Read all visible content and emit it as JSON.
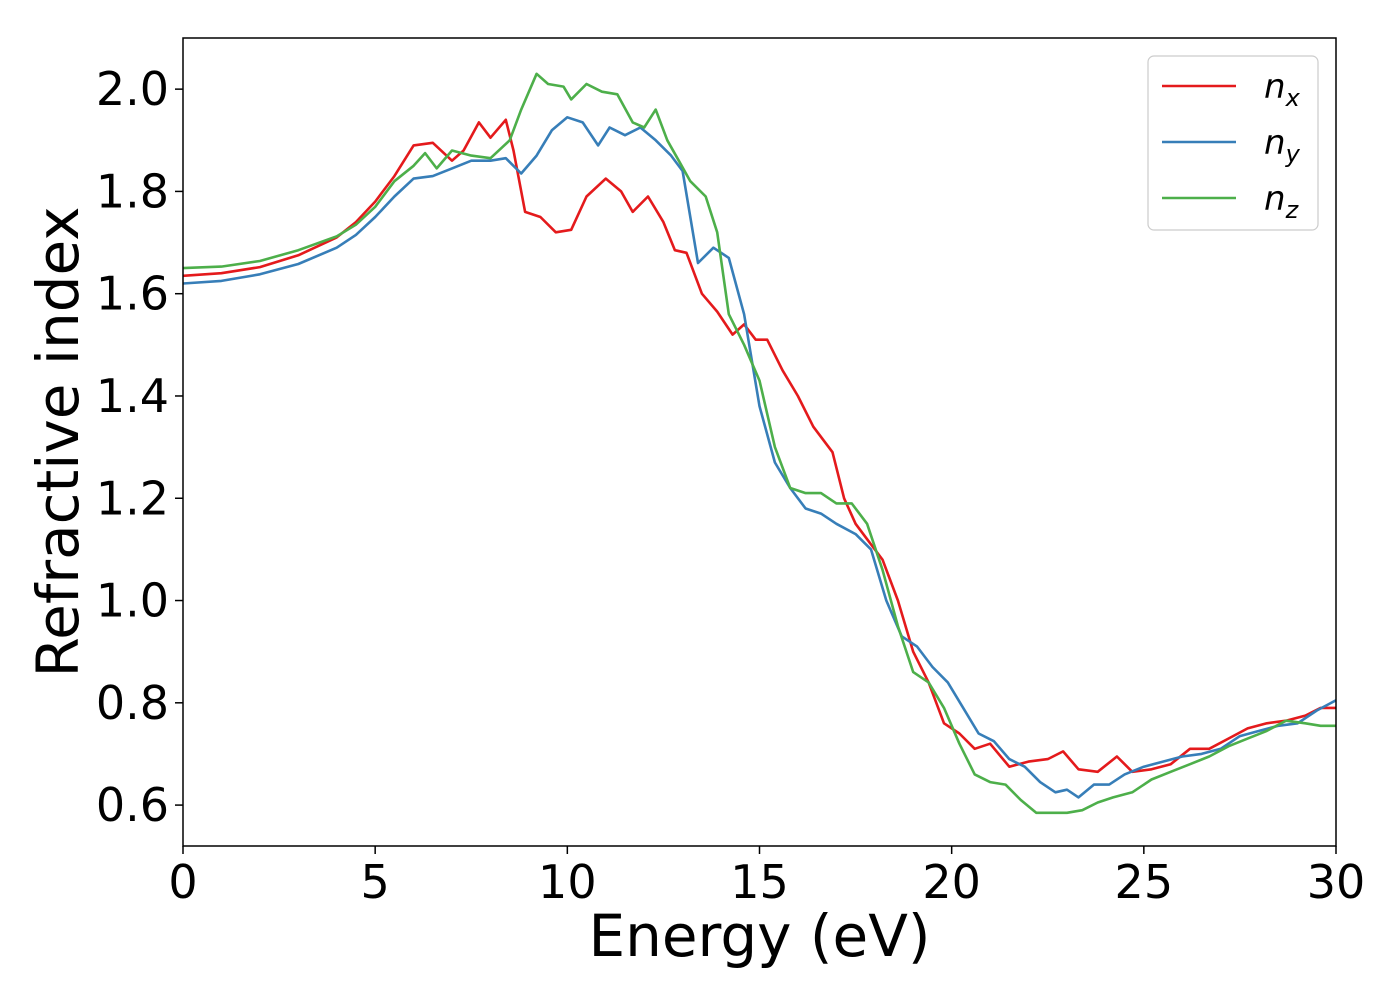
{
  "chart_data": {
    "type": "line",
    "title": "",
    "xlabel": "Energy (eV)",
    "ylabel": "Refractive index",
    "xlim": [
      0,
      30
    ],
    "ylim": [
      0.52,
      2.1
    ],
    "xticks": [
      0,
      5,
      10,
      15,
      20,
      25,
      30
    ],
    "xtick_labels": [
      "0",
      "5",
      "10",
      "15",
      "20",
      "25",
      "30"
    ],
    "yticks": [
      0.6,
      0.8,
      1.0,
      1.2,
      1.4,
      1.6,
      1.8,
      2.0
    ],
    "ytick_labels": [
      "0.6",
      "0.8",
      "1.0",
      "1.2",
      "1.4",
      "1.6",
      "1.8",
      "2.0"
    ],
    "grid": false,
    "legend_position": "top-right",
    "series": [
      {
        "name": "n_x",
        "label_base": "n",
        "label_sub": "x",
        "color": "#e41a1c",
        "points": [
          [
            0,
            1.635
          ],
          [
            1,
            1.64
          ],
          [
            2,
            1.652
          ],
          [
            3,
            1.675
          ],
          [
            4,
            1.71
          ],
          [
            4.5,
            1.74
          ],
          [
            5,
            1.78
          ],
          [
            5.5,
            1.83
          ],
          [
            6,
            1.89
          ],
          [
            6.5,
            1.895
          ],
          [
            7,
            1.86
          ],
          [
            7.3,
            1.88
          ],
          [
            7.7,
            1.935
          ],
          [
            8.0,
            1.905
          ],
          [
            8.4,
            1.94
          ],
          [
            8.6,
            1.88
          ],
          [
            8.9,
            1.76
          ],
          [
            9.3,
            1.75
          ],
          [
            9.7,
            1.72
          ],
          [
            10.1,
            1.725
          ],
          [
            10.5,
            1.79
          ],
          [
            11.0,
            1.825
          ],
          [
            11.4,
            1.8
          ],
          [
            11.7,
            1.76
          ],
          [
            12.1,
            1.79
          ],
          [
            12.5,
            1.74
          ],
          [
            12.8,
            1.685
          ],
          [
            13.1,
            1.68
          ],
          [
            13.5,
            1.6
          ],
          [
            13.9,
            1.565
          ],
          [
            14.3,
            1.52
          ],
          [
            14.6,
            1.54
          ],
          [
            14.9,
            1.51
          ],
          [
            15.2,
            1.51
          ],
          [
            15.6,
            1.45
          ],
          [
            16.0,
            1.4
          ],
          [
            16.4,
            1.34
          ],
          [
            16.9,
            1.29
          ],
          [
            17.2,
            1.2
          ],
          [
            17.5,
            1.15
          ],
          [
            17.8,
            1.12
          ],
          [
            18.2,
            1.08
          ],
          [
            18.6,
            1.0
          ],
          [
            19.0,
            0.9
          ],
          [
            19.4,
            0.84
          ],
          [
            19.8,
            0.76
          ],
          [
            20.2,
            0.74
          ],
          [
            20.6,
            0.71
          ],
          [
            21.0,
            0.72
          ],
          [
            21.5,
            0.675
          ],
          [
            22.0,
            0.685
          ],
          [
            22.5,
            0.69
          ],
          [
            22.9,
            0.705
          ],
          [
            23.3,
            0.67
          ],
          [
            23.8,
            0.665
          ],
          [
            24.3,
            0.695
          ],
          [
            24.7,
            0.665
          ],
          [
            25.2,
            0.67
          ],
          [
            25.7,
            0.68
          ],
          [
            26.2,
            0.71
          ],
          [
            26.7,
            0.71
          ],
          [
            27.2,
            0.73
          ],
          [
            27.7,
            0.75
          ],
          [
            28.2,
            0.76
          ],
          [
            28.7,
            0.765
          ],
          [
            29.2,
            0.775
          ],
          [
            29.6,
            0.79
          ],
          [
            30,
            0.79
          ]
        ]
      },
      {
        "name": "n_y",
        "label_base": "n",
        "label_sub": "y",
        "color": "#377eb8",
        "points": [
          [
            0,
            1.62
          ],
          [
            1,
            1.625
          ],
          [
            2,
            1.638
          ],
          [
            3,
            1.658
          ],
          [
            4,
            1.69
          ],
          [
            4.5,
            1.715
          ],
          [
            5,
            1.75
          ],
          [
            5.5,
            1.79
          ],
          [
            6,
            1.825
          ],
          [
            6.5,
            1.83
          ],
          [
            7,
            1.845
          ],
          [
            7.5,
            1.86
          ],
          [
            8,
            1.86
          ],
          [
            8.4,
            1.865
          ],
          [
            8.8,
            1.835
          ],
          [
            9.2,
            1.87
          ],
          [
            9.6,
            1.92
          ],
          [
            10.0,
            1.945
          ],
          [
            10.4,
            1.935
          ],
          [
            10.8,
            1.89
          ],
          [
            11.1,
            1.925
          ],
          [
            11.5,
            1.91
          ],
          [
            11.9,
            1.925
          ],
          [
            12.3,
            1.9
          ],
          [
            12.7,
            1.87
          ],
          [
            13.0,
            1.84
          ],
          [
            13.4,
            1.66
          ],
          [
            13.8,
            1.69
          ],
          [
            14.2,
            1.67
          ],
          [
            14.6,
            1.56
          ],
          [
            15.0,
            1.38
          ],
          [
            15.4,
            1.27
          ],
          [
            15.8,
            1.22
          ],
          [
            16.2,
            1.18
          ],
          [
            16.6,
            1.17
          ],
          [
            17.0,
            1.15
          ],
          [
            17.5,
            1.13
          ],
          [
            17.9,
            1.1
          ],
          [
            18.3,
            1.0
          ],
          [
            18.7,
            0.93
          ],
          [
            19.1,
            0.91
          ],
          [
            19.5,
            0.87
          ],
          [
            19.9,
            0.84
          ],
          [
            20.3,
            0.79
          ],
          [
            20.7,
            0.74
          ],
          [
            21.1,
            0.725
          ],
          [
            21.5,
            0.69
          ],
          [
            21.9,
            0.675
          ],
          [
            22.3,
            0.645
          ],
          [
            22.7,
            0.625
          ],
          [
            23.0,
            0.63
          ],
          [
            23.3,
            0.615
          ],
          [
            23.7,
            0.64
          ],
          [
            24.1,
            0.64
          ],
          [
            24.5,
            0.66
          ],
          [
            25.0,
            0.675
          ],
          [
            25.5,
            0.685
          ],
          [
            26.0,
            0.695
          ],
          [
            26.5,
            0.7
          ],
          [
            27.0,
            0.71
          ],
          [
            27.5,
            0.735
          ],
          [
            28.0,
            0.745
          ],
          [
            28.5,
            0.755
          ],
          [
            29.0,
            0.76
          ],
          [
            29.5,
            0.785
          ],
          [
            30,
            0.805
          ]
        ]
      },
      {
        "name": "n_z",
        "label_base": "n",
        "label_sub": "z",
        "color": "#4daf4a",
        "points": [
          [
            0,
            1.65
          ],
          [
            1,
            1.653
          ],
          [
            2,
            1.664
          ],
          [
            3,
            1.685
          ],
          [
            4,
            1.712
          ],
          [
            4.5,
            1.735
          ],
          [
            5,
            1.77
          ],
          [
            5.5,
            1.82
          ],
          [
            6,
            1.85
          ],
          [
            6.3,
            1.875
          ],
          [
            6.6,
            1.845
          ],
          [
            7,
            1.88
          ],
          [
            7.5,
            1.87
          ],
          [
            8.0,
            1.865
          ],
          [
            8.5,
            1.9
          ],
          [
            8.8,
            1.96
          ],
          [
            9.2,
            2.03
          ],
          [
            9.5,
            2.01
          ],
          [
            9.9,
            2.005
          ],
          [
            10.1,
            1.98
          ],
          [
            10.5,
            2.01
          ],
          [
            10.9,
            1.995
          ],
          [
            11.3,
            1.99
          ],
          [
            11.7,
            1.935
          ],
          [
            12.0,
            1.925
          ],
          [
            12.3,
            1.96
          ],
          [
            12.6,
            1.9
          ],
          [
            12.9,
            1.86
          ],
          [
            13.2,
            1.82
          ],
          [
            13.6,
            1.79
          ],
          [
            13.9,
            1.72
          ],
          [
            14.2,
            1.56
          ],
          [
            14.6,
            1.5
          ],
          [
            15.0,
            1.43
          ],
          [
            15.4,
            1.3
          ],
          [
            15.8,
            1.22
          ],
          [
            16.2,
            1.21
          ],
          [
            16.6,
            1.21
          ],
          [
            17.0,
            1.19
          ],
          [
            17.4,
            1.19
          ],
          [
            17.8,
            1.15
          ],
          [
            18.2,
            1.06
          ],
          [
            18.6,
            0.95
          ],
          [
            19.0,
            0.86
          ],
          [
            19.4,
            0.84
          ],
          [
            19.8,
            0.79
          ],
          [
            20.2,
            0.72
          ],
          [
            20.6,
            0.66
          ],
          [
            21.0,
            0.645
          ],
          [
            21.4,
            0.64
          ],
          [
            21.8,
            0.61
          ],
          [
            22.2,
            0.585
          ],
          [
            22.6,
            0.585
          ],
          [
            23.0,
            0.585
          ],
          [
            23.4,
            0.59
          ],
          [
            23.8,
            0.605
          ],
          [
            24.2,
            0.615
          ],
          [
            24.7,
            0.625
          ],
          [
            25.2,
            0.65
          ],
          [
            25.7,
            0.665
          ],
          [
            26.2,
            0.68
          ],
          [
            26.7,
            0.695
          ],
          [
            27.2,
            0.715
          ],
          [
            27.7,
            0.73
          ],
          [
            28.2,
            0.745
          ],
          [
            28.7,
            0.765
          ],
          [
            29.2,
            0.76
          ],
          [
            29.6,
            0.755
          ],
          [
            30,
            0.755
          ]
        ]
      }
    ]
  }
}
